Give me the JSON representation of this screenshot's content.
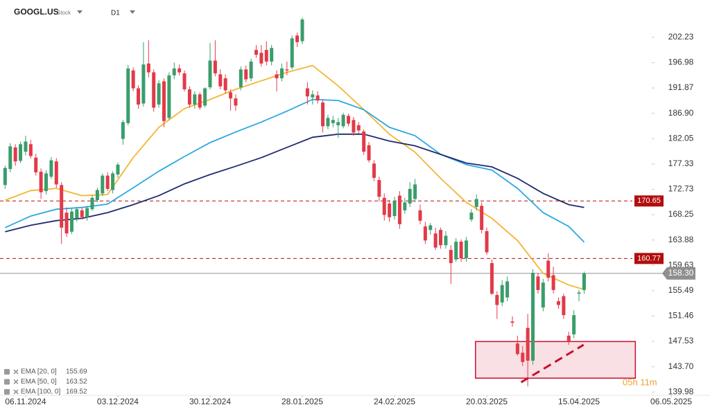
{
  "header": {
    "symbol": "GOOGL.US",
    "kind": "Stock",
    "interval": "D1",
    "countdown": "05h 11m"
  },
  "chart_data": {
    "type": "candlestick",
    "log_scale": true,
    "grid": false,
    "ylim": [
      139.6,
      210.2
    ],
    "yticks": [
      202.23,
      196.98,
      191.87,
      {
        "value": 186.9,
        "label": "186.90"
      },
      182.05,
      177.33,
      172.73,
      168.25,
      163.88,
      159.63,
      155.49,
      151.46,
      147.53,
      {
        "value": 143.7,
        "label": "143.70"
      },
      139.98
    ],
    "xlim": [
      -1,
      126.2
    ],
    "xticks": [
      {
        "value": 4,
        "label": "06.11.2024"
      },
      {
        "value": 22,
        "label": "03.12.2024"
      },
      {
        "value": 40,
        "label": "30.12.2024"
      },
      {
        "value": 58,
        "label": "28.01.2025"
      },
      {
        "value": 76,
        "label": "24.02.2025"
      },
      {
        "value": 94,
        "label": "20.03.2025"
      },
      {
        "value": 112,
        "label": "15.04.2025"
      },
      {
        "value": 130,
        "label": "06.05.2025"
      }
    ],
    "candles": {
      "up_color": "#3a9d6b",
      "down_color": "#e23a48",
      "open": [
        173.5,
        176.4,
        180.4,
        177.9,
        179.6,
        181.0,
        178.5,
        175.9,
        172.4,
        175.0,
        177.8,
        173.5,
        168.6,
        165.3,
        167.6,
        169.0,
        167.8,
        169.2,
        170.8,
        172.0,
        175.2,
        172.6,
        175.4,
        182.0,
        185.0,
        195.4,
        191.8,
        188.8,
        196.8,
        195.0,
        188.6,
        193.2,
        186.0,
        194.4,
        195.8,
        194.8,
        191.6,
        188.6,
        190.6,
        188.4,
        192.0,
        197.4,
        194.6,
        193.8,
        191.0,
        189.8,
        192.0,
        195.6,
        193.8,
        199.6,
        199.0,
        199.6,
        197.2,
        194.6,
        193.8,
        195.6,
        196.0,
        202.6,
        201.4,
        191.8,
        190.0,
        190.4,
        189.0,
        184.4,
        185.0,
        184.6,
        184.4,
        186.4,
        185.6,
        184.6,
        183.4,
        180.8,
        177.4,
        174.4,
        171.2,
        170.2,
        168.0,
        171.6,
        169.0,
        170.2,
        171.0,
        169.0,
        166.2,
        165.6,
        165.0,
        165.6,
        163.0,
        162.2,
        160.6,
        163.6,
        160.8,
        167.4,
        169.6,
        169.8,
        165.4,
        160.0,
        154.8,
        153.6,
        154.4,
        150.6,
        147.2,
        145.8,
        149.6,
        144.6,
        157.8,
        152.8,
        160.4,
        158.0,
        153.8,
        154.6,
        148.4,
        148.6,
        155.0,
        155.6
      ],
      "high": [
        177.0,
        181.2,
        181.0,
        181.5,
        182.6,
        181.8,
        179.2,
        176.5,
        176.2,
        178.6,
        178.4,
        174.0,
        169.5,
        169.4,
        169.6,
        169.5,
        169.8,
        171.6,
        173.0,
        175.6,
        175.8,
        176.0,
        177.6,
        185.6,
        196.5,
        196.0,
        192.4,
        201.2,
        201.6,
        195.6,
        193.4,
        193.8,
        195.0,
        197.0,
        196.6,
        195.4,
        192.2,
        191.2,
        191.0,
        192.0,
        201.0,
        201.6,
        195.6,
        194.6,
        191.6,
        190.6,
        196.2,
        196.4,
        197.8,
        200.6,
        200.6,
        201.4,
        200.6,
        195.4,
        196.8,
        197.2,
        202.6,
        203.2,
        206.4,
        193.0,
        191.4,
        191.2,
        189.6,
        186.6,
        186.4,
        186.0,
        187.0,
        186.8,
        186.2,
        185.2,
        183.8,
        181.4,
        178.0,
        175.0,
        172.0,
        170.8,
        171.4,
        172.4,
        171.2,
        174.0,
        174.6,
        170.0,
        167.0,
        166.8,
        166.0,
        166.0,
        165.4,
        163.0,
        164.2,
        164.0,
        164.4,
        169.2,
        171.8,
        170.4,
        166.0,
        160.6,
        155.4,
        157.2,
        157.8,
        151.4,
        148.4,
        146.8,
        151.8,
        159.0,
        158.4,
        157.4,
        161.6,
        159.4,
        154.4,
        155.0,
        149.0,
        152.4,
        155.6,
        158.6
      ],
      "low": [
        172.8,
        175.8,
        177.0,
        177.5,
        178.9,
        178.3,
        175.2,
        171.0,
        171.8,
        174.6,
        173.0,
        163.2,
        164.4,
        164.9,
        167.0,
        167.4,
        167.2,
        168.9,
        170.4,
        171.5,
        172.4,
        172.0,
        174.8,
        180.9,
        184.6,
        191.2,
        187.8,
        188.2,
        194.0,
        187.2,
        188.0,
        184.2,
        185.6,
        193.6,
        194.4,
        191.2,
        188.0,
        187.8,
        187.6,
        188.0,
        191.6,
        194.2,
        191.6,
        190.8,
        187.4,
        187.4,
        191.4,
        193.0,
        193.2,
        198.0,
        196.2,
        196.4,
        196.4,
        191.2,
        193.2,
        194.4,
        195.6,
        200.2,
        200.8,
        188.6,
        188.6,
        188.8,
        183.2,
        183.8,
        184.2,
        182.2,
        184.0,
        184.4,
        182.6,
        183.0,
        179.0,
        177.6,
        174.2,
        170.6,
        167.2,
        167.0,
        167.4,
        165.8,
        168.4,
        169.6,
        170.4,
        166.6,
        163.2,
        164.8,
        162.2,
        162.4,
        162.4,
        156.6,
        160.2,
        160.2,
        160.2,
        167.0,
        169.0,
        165.0,
        161.4,
        154.8,
        151.0,
        153.0,
        153.8,
        149.8,
        145.4,
        143.8,
        140.8,
        144.0,
        155.0,
        152.2,
        157.0,
        155.0,
        152.6,
        151.0,
        147.0,
        148.0,
        153.8,
        155.0
      ],
      "close": [
        176.6,
        180.6,
        177.8,
        181.0,
        181.5,
        178.8,
        175.8,
        172.2,
        175.6,
        178.0,
        173.6,
        166.0,
        165.0,
        168.8,
        169.2,
        167.8,
        169.4,
        171.2,
        172.6,
        175.2,
        172.8,
        175.6,
        177.2,
        185.2,
        195.8,
        191.8,
        188.6,
        196.6,
        195.0,
        188.0,
        192.8,
        185.4,
        194.4,
        195.8,
        195.0,
        191.6,
        188.6,
        190.6,
        188.0,
        191.8,
        197.4,
        194.8,
        192.2,
        191.4,
        189.8,
        188.4,
        195.6,
        193.6,
        197.2,
        198.6,
        196.8,
        197.2,
        200.0,
        193.8,
        195.8,
        195.4,
        202.0,
        201.2,
        206.0,
        190.2,
        190.6,
        189.4,
        184.4,
        186.0,
        185.6,
        185.2,
        186.6,
        184.9,
        183.2,
        183.6,
        179.6,
        178.0,
        174.8,
        171.4,
        168.2,
        167.8,
        170.6,
        166.6,
        170.4,
        172.8,
        173.6,
        167.2,
        163.8,
        166.4,
        162.6,
        163.0,
        164.6,
        160.0,
        163.6,
        160.8,
        163.8,
        168.6,
        171.0,
        165.6,
        161.8,
        155.0,
        153.2,
        156.4,
        157.0,
        150.4,
        145.6,
        144.4,
        144.6,
        158.4,
        155.6,
        156.8,
        157.6,
        155.6,
        153.2,
        151.6,
        147.6,
        151.6,
        155.2,
        158.3
      ]
    },
    "series": [
      {
        "name": "EMA [20, 0]",
        "color": "#f4b533",
        "x": [
          0,
          5,
          10,
          15,
          20,
          25,
          30,
          35,
          40,
          45,
          50,
          55,
          60,
          65,
          70,
          75,
          80,
          85,
          90,
          95,
          100,
          105,
          110,
          113
        ],
        "values": [
          170.8,
          172.5,
          172.9,
          171.6,
          171.8,
          178.5,
          184.2,
          187.8,
          189.6,
          191.6,
          193.3,
          195.0,
          196.4,
          192.3,
          187.6,
          182.9,
          179.5,
          174.7,
          170.4,
          167.6,
          163.8,
          158.3,
          156.4,
          155.69
        ]
      },
      {
        "name": "EMA [50, 0]",
        "color": "#2aa8e2",
        "x": [
          0,
          5,
          10,
          15,
          20,
          25,
          30,
          35,
          40,
          45,
          50,
          55,
          60,
          65,
          70,
          75,
          80,
          85,
          90,
          95,
          100,
          105,
          110,
          113
        ],
        "values": [
          166.0,
          168.0,
          169.2,
          169.5,
          170.1,
          173.0,
          176.0,
          178.7,
          181.3,
          183.3,
          185.2,
          187.3,
          189.6,
          189.4,
          187.6,
          184.2,
          182.6,
          179.1,
          177.2,
          176.2,
          172.9,
          168.6,
          166.2,
          163.52
        ]
      },
      {
        "name": "EMA [100, 0]",
        "color": "#1e2a6e",
        "x": [
          0,
          5,
          10,
          15,
          20,
          25,
          30,
          35,
          40,
          45,
          50,
          55,
          60,
          65,
          70,
          75,
          80,
          85,
          90,
          95,
          100,
          105,
          110,
          113
        ],
        "values": [
          165.3,
          166.4,
          167.2,
          167.6,
          168.6,
          170.0,
          171.6,
          173.7,
          175.4,
          176.9,
          178.5,
          180.4,
          182.3,
          182.9,
          182.9,
          181.6,
          180.7,
          179.1,
          177.5,
          176.8,
          174.7,
          172.0,
          170.0,
          169.52
        ]
      }
    ],
    "levels": {
      "color": "#b30d0d",
      "values": [
        170.65,
        160.77
      ]
    },
    "last_price": {
      "value": 158.3,
      "label": "158.30",
      "color": "#8f8f8f"
    },
    "zone": {
      "x": [
        91.8,
        123.0
      ],
      "y": [
        147.5,
        142.0
      ],
      "color": "#c8102e"
    },
    "trendline": {
      "x": [
        100.7,
        112.9
      ],
      "y": [
        141.4,
        147.0
      ],
      "color": "#c8102e"
    }
  }
}
